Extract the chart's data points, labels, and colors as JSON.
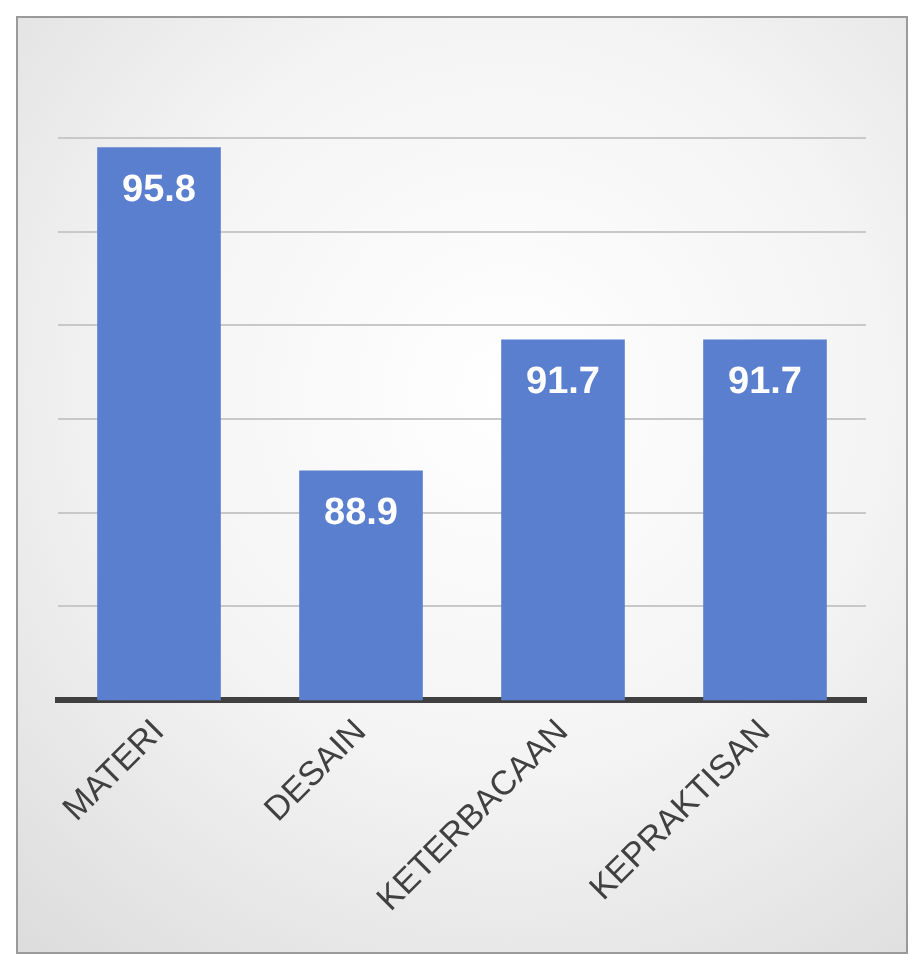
{
  "chart_data": {
    "type": "bar",
    "categories": [
      "MATERI",
      "DESAIN",
      "KETERBACAAN",
      "KEPRAKTISAN"
    ],
    "values": [
      95.8,
      88.9,
      91.7,
      91.7
    ],
    "color": "#5b7fcf",
    "ylim": [
      84,
      96
    ],
    "yticks": [
      {
        "value": 84,
        "label": null
      },
      {
        "value": 86,
        "label": null
      },
      {
        "value": 88,
        "label": null
      },
      {
        "value": 90,
        "label": null
      },
      {
        "value": 92,
        "label": null
      },
      {
        "value": 94,
        "label": null
      },
      {
        "value": 96,
        "label": null
      }
    ],
    "tick_labels": "x",
    "grid": "y",
    "data_labels": true,
    "legend": false
  }
}
